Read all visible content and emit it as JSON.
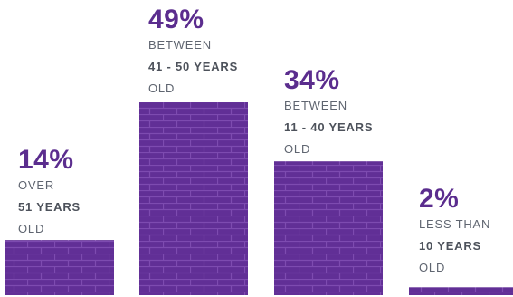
{
  "colors": {
    "accent": "#5b2d8e",
    "bar_fill": "#612f96",
    "brick_line": "#7d4bb0",
    "text": "#5f6570"
  },
  "chart_data": {
    "type": "bar",
    "ylim": [
      0,
      49
    ],
    "series": [
      {
        "values": [
          14,
          49,
          34,
          2
        ]
      }
    ],
    "labels": [
      {
        "pct": "14%",
        "line1": "OVER",
        "line2": "51 YEARS",
        "line3": "OLD"
      },
      {
        "pct": "49%",
        "line1": "BETWEEN",
        "line2": "41 - 50 YEARS",
        "line3": "OLD"
      },
      {
        "pct": "34%",
        "line1": "BETWEEN",
        "line2": "11 - 40 YEARS",
        "line3": "OLD"
      },
      {
        "pct": "2%",
        "line1": "LESS THAN",
        "line2": "10 YEARS",
        "line3": "OLD"
      }
    ]
  }
}
